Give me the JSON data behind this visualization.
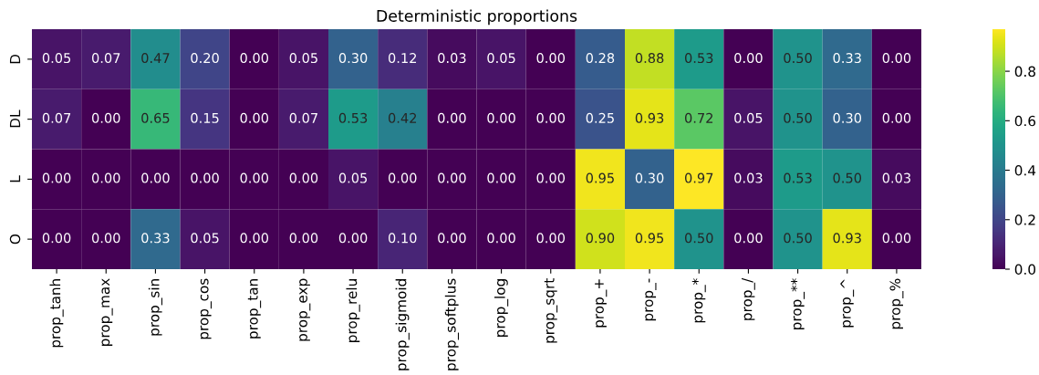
{
  "chart_data": {
    "type": "heatmap",
    "title": "Deterministic proportions",
    "categories": [
      "prop_tanh",
      "prop_max",
      "prop_sin",
      "prop_cos",
      "prop_tan",
      "prop_exp",
      "prop_relu",
      "prop_sigmoid",
      "prop_softplus",
      "prop_log",
      "prop_sqrt",
      "prop_+",
      "prop_-",
      "prop_*",
      "prop_/",
      "prop_**",
      "prop_^",
      "prop_%"
    ],
    "y_categories": [
      "D",
      "DL",
      "L",
      "O"
    ],
    "cells": [
      [
        0.05,
        0.07,
        0.47,
        0.2,
        0.0,
        0.05,
        0.3,
        0.12,
        0.03,
        0.05,
        0.0,
        0.28,
        0.88,
        0.53,
        0.0,
        0.5,
        0.33,
        0.0
      ],
      [
        0.07,
        0.0,
        0.65,
        0.15,
        0.0,
        0.07,
        0.53,
        0.42,
        0.0,
        0.0,
        0.0,
        0.25,
        0.93,
        0.72,
        0.05,
        0.5,
        0.3,
        0.0
      ],
      [
        0.0,
        0.0,
        0.0,
        0.0,
        0.0,
        0.0,
        0.05,
        0.0,
        0.0,
        0.0,
        0.0,
        0.95,
        0.3,
        0.97,
        0.03,
        0.53,
        0.5,
        0.03
      ],
      [
        0.0,
        0.0,
        0.33,
        0.05,
        0.0,
        0.0,
        0.0,
        0.1,
        0.0,
        0.0,
        0.0,
        0.9,
        0.95,
        0.5,
        0.0,
        0.5,
        0.93,
        0.0
      ]
    ],
    "cell_labels": [
      [
        "0.05",
        "0.07",
        "0.47",
        "0.20",
        "0.00",
        "0.05",
        "0.30",
        "0.12",
        "0.03",
        "0.05",
        "0.00",
        "0.28",
        "0.88",
        "0.53",
        "0.00",
        "0.50",
        "0.33",
        "0.00"
      ],
      [
        "0.07",
        "0.00",
        "0.65",
        "0.15",
        "0.00",
        "0.07",
        "0.53",
        "0.42",
        "0.00",
        "0.00",
        "0.00",
        "0.25",
        "0.93",
        "0.72",
        "0.05",
        "0.50",
        "0.30",
        "0.00"
      ],
      [
        "0.00",
        "0.00",
        "0.00",
        "0.00",
        "0.00",
        "0.00",
        "0.05",
        "0.00",
        "0.00",
        "0.00",
        "0.00",
        "0.95",
        "0.30",
        "0.97",
        "0.03",
        "0.53",
        "0.50",
        "0.03"
      ],
      [
        "0.00",
        "0.00",
        "0.33",
        "0.05",
        "0.00",
        "0.00",
        "0.00",
        "0.10",
        "0.00",
        "0.00",
        "0.00",
        "0.90",
        "0.95",
        "0.50",
        "0.00",
        "0.50",
        "0.93",
        "0.00"
      ]
    ],
    "clim": [
      0,
      0.97
    ],
    "cticks": [
      {
        "value": 0,
        "label": "0.0"
      },
      {
        "value": 0.2,
        "label": "0.2"
      },
      {
        "value": 0.4,
        "label": "0.4"
      },
      {
        "value": 0.6,
        "label": "0.6"
      },
      {
        "value": 0.8,
        "label": "0.8"
      }
    ]
  }
}
